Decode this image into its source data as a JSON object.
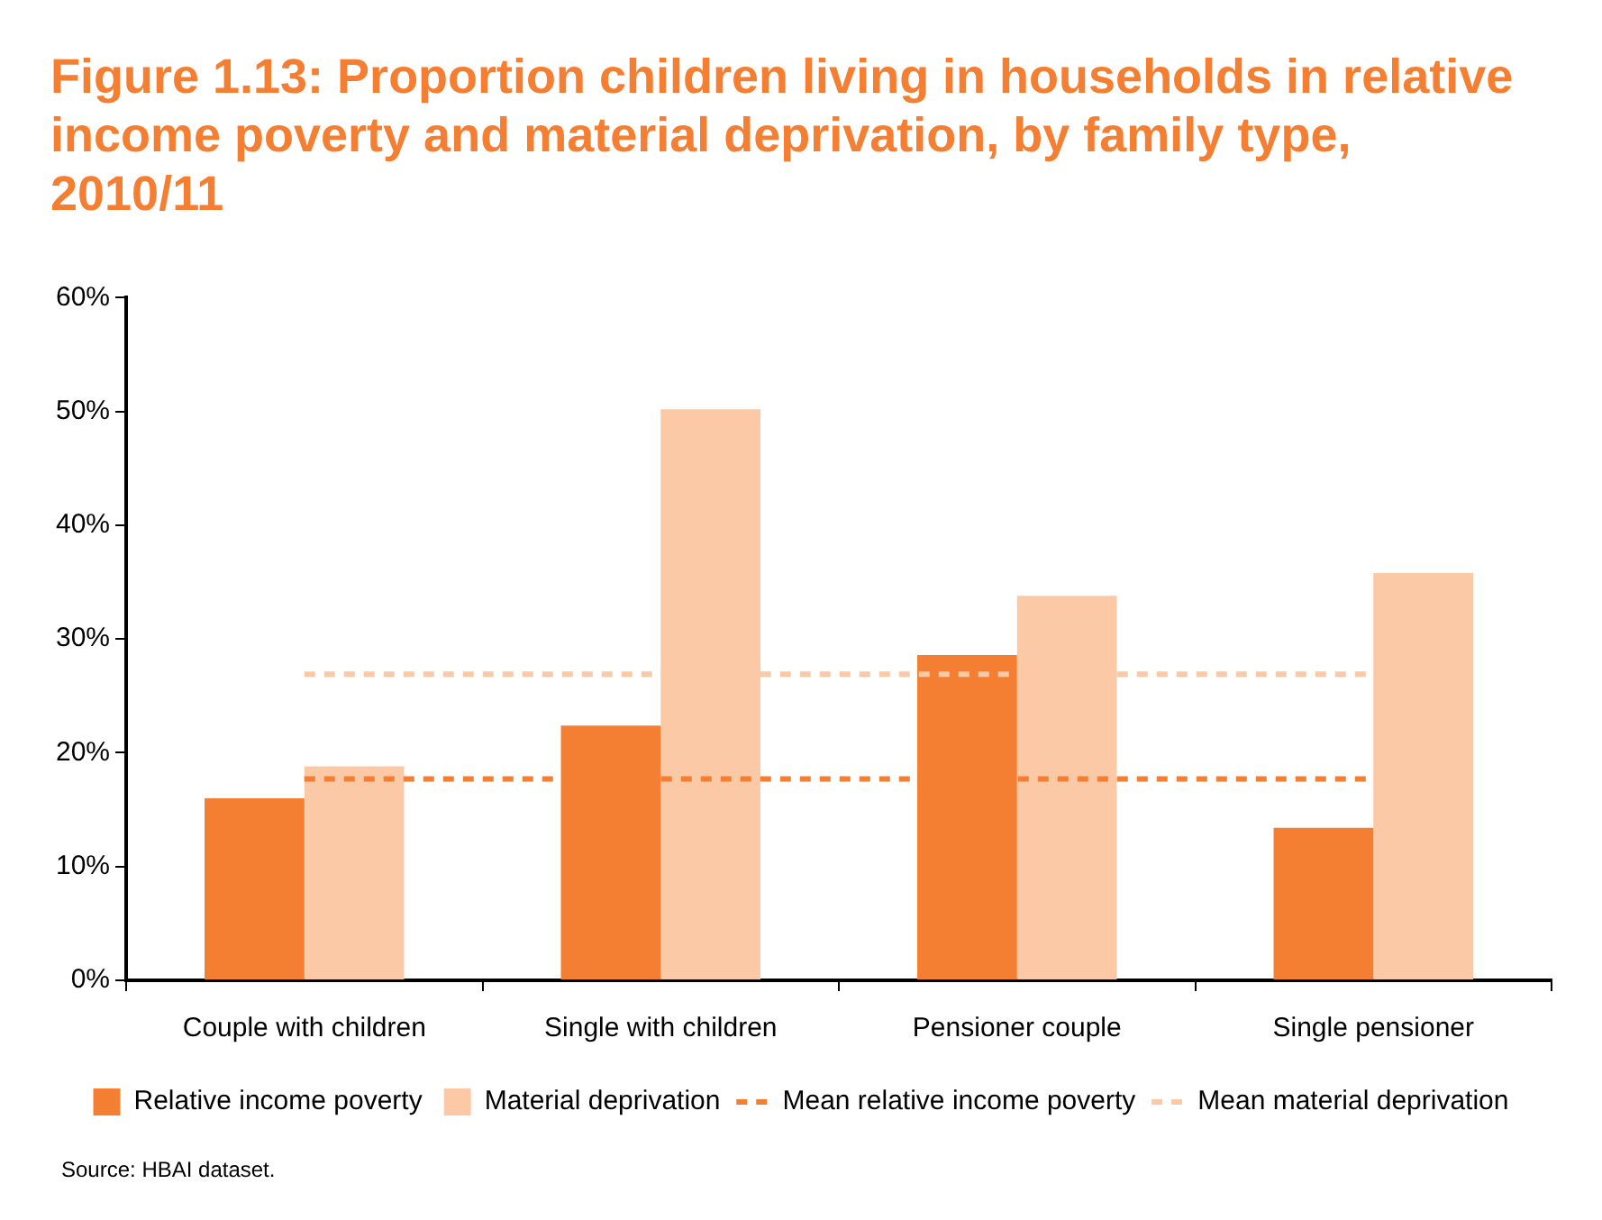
{
  "chart_data": {
    "type": "bar",
    "title": "Figure 1.13: Proportion children living in households in relative income poverty and material deprivation, by family type, 2010/11",
    "categories": [
      "Couple with children",
      "Single with children",
      "Pensioner couple",
      "Single pensioner"
    ],
    "series": [
      {
        "name": "Relative income poverty",
        "color": "#f47f32",
        "values": [
          16,
          22.4,
          28.6,
          13.4
        ]
      },
      {
        "name": "Material deprivation",
        "color": "#fcc9a7",
        "values": [
          18.8,
          50.2,
          33.8,
          35.8
        ]
      },
      {
        "name": "Mean relative income poverty",
        "type": "line",
        "line_style": "dashed",
        "color": "#f47f32",
        "values": [
          17.7,
          17.7,
          17.7,
          17.7
        ]
      },
      {
        "name": "Mean material deprivation",
        "type": "line",
        "line_style": "dashed",
        "color": "#fcc9a7",
        "values": [
          26.9,
          26.9,
          26.9,
          26.9
        ]
      }
    ],
    "ylim": [
      0,
      60
    ],
    "yticks": [
      {
        "value": 0,
        "label": "0%"
      },
      {
        "value": 10,
        "label": "10%"
      },
      {
        "value": 20,
        "label": "20%"
      },
      {
        "value": 30,
        "label": "30%"
      },
      {
        "value": 40,
        "label": "40%"
      },
      {
        "value": 50,
        "label": "50%"
      },
      {
        "value": 60,
        "label": "60%"
      }
    ],
    "grid": false,
    "legend": "bottom",
    "marker": "none",
    "annotations": [
      "Source: HBAI dataset."
    ]
  }
}
